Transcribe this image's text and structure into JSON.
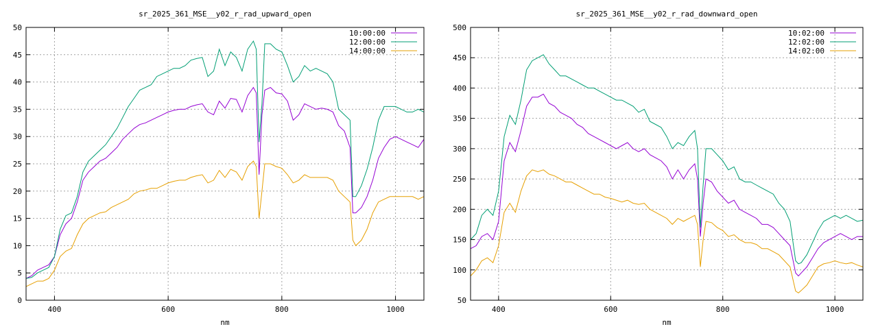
{
  "chart_data": [
    {
      "type": "line",
      "title": "sr_2025_361_MSE__y02_r_rad_upward_open",
      "xlabel": "nm",
      "ylabel": "",
      "xlim": [
        350,
        1050
      ],
      "ylim": [
        0,
        50
      ],
      "xticks": [
        400,
        600,
        800,
        1000
      ],
      "yticks": [
        0,
        5,
        10,
        15,
        20,
        25,
        30,
        35,
        40,
        45,
        50
      ],
      "grid": true,
      "legend": "top-right",
      "series": [
        {
          "name": "10:00:00",
          "color": "#9400d3",
          "x": [
            350,
            360,
            370,
            380,
            390,
            400,
            410,
            420,
            430,
            440,
            450,
            460,
            470,
            480,
            490,
            500,
            510,
            520,
            530,
            540,
            550,
            560,
            570,
            580,
            590,
            600,
            610,
            620,
            630,
            640,
            650,
            660,
            670,
            680,
            690,
            700,
            710,
            720,
            730,
            740,
            750,
            755,
            760,
            765,
            770,
            780,
            790,
            800,
            810,
            820,
            830,
            840,
            850,
            860,
            870,
            880,
            890,
            900,
            910,
            920,
            925,
            930,
            940,
            950,
            960,
            970,
            980,
            990,
            1000,
            1010,
            1020,
            1030,
            1040,
            1050
          ],
          "y": [
            4,
            4.5,
            5.5,
            6,
            6.5,
            8,
            12,
            14,
            15,
            18,
            22,
            23.5,
            24.5,
            25.5,
            26,
            27,
            28,
            29.5,
            30.5,
            31.5,
            32.2,
            32.5,
            33,
            33.5,
            34,
            34.5,
            34.8,
            35,
            35,
            35.5,
            35.8,
            36,
            34.5,
            34,
            36.5,
            35.2,
            37,
            36.8,
            34.5,
            37.5,
            39,
            38,
            23,
            34,
            38.5,
            39,
            38,
            37.8,
            36.5,
            33,
            34,
            36,
            35.5,
            35,
            35.2,
            35,
            34.5,
            32,
            31,
            28,
            16,
            16,
            17,
            19,
            22,
            26,
            28,
            29.5,
            30,
            29.5,
            29,
            28.5,
            28,
            29.5
          ]
        },
        {
          "name": "12:00:00",
          "color": "#009e73",
          "x": [
            350,
            360,
            370,
            380,
            390,
            400,
            410,
            420,
            430,
            440,
            450,
            460,
            470,
            480,
            490,
            500,
            510,
            520,
            530,
            540,
            550,
            560,
            570,
            580,
            590,
            600,
            610,
            620,
            630,
            640,
            650,
            660,
            670,
            680,
            690,
            700,
            710,
            720,
            730,
            740,
            750,
            755,
            760,
            765,
            770,
            780,
            790,
            800,
            810,
            820,
            830,
            840,
            850,
            860,
            870,
            880,
            890,
            900,
            910,
            920,
            925,
            930,
            940,
            950,
            960,
            970,
            980,
            990,
            1000,
            1010,
            1020,
            1030,
            1040,
            1050
          ],
          "y": [
            4,
            4.2,
            5,
            5.5,
            6,
            8,
            13,
            15.5,
            16,
            19,
            23.5,
            25.5,
            26.5,
            27.5,
            28.5,
            30,
            31.5,
            33.5,
            35.5,
            37,
            38.5,
            39,
            39.5,
            41,
            41.5,
            42,
            42.5,
            42.5,
            43,
            44,
            44.3,
            44.5,
            41,
            42,
            46,
            43,
            45.5,
            44.5,
            42,
            46,
            47.5,
            46,
            29,
            36,
            47,
            47,
            46,
            45.5,
            43,
            40,
            41,
            43,
            42,
            42.5,
            42,
            41.5,
            40,
            35,
            34,
            33,
            19,
            19,
            21,
            24,
            28,
            33,
            35.5,
            35.5,
            35.5,
            35,
            34.5,
            34.5,
            35,
            34.5
          ]
        },
        {
          "name": "14:00:00",
          "color": "#e69f00",
          "x": [
            350,
            360,
            370,
            380,
            390,
            400,
            410,
            420,
            430,
            440,
            450,
            460,
            470,
            480,
            490,
            500,
            510,
            520,
            530,
            540,
            550,
            560,
            570,
            580,
            590,
            600,
            610,
            620,
            630,
            640,
            650,
            660,
            670,
            680,
            690,
            700,
            710,
            720,
            730,
            740,
            750,
            755,
            760,
            765,
            770,
            780,
            790,
            800,
            810,
            820,
            830,
            840,
            850,
            860,
            870,
            880,
            890,
            900,
            910,
            920,
            925,
            930,
            940,
            950,
            960,
            970,
            980,
            990,
            1000,
            1010,
            1020,
            1030,
            1040,
            1050
          ],
          "y": [
            2.5,
            3,
            3.5,
            3.5,
            4,
            5.5,
            8,
            9,
            9.5,
            12,
            14,
            15,
            15.5,
            16,
            16.2,
            17,
            17.5,
            18,
            18.5,
            19.5,
            20,
            20.2,
            20.5,
            20.5,
            21,
            21.5,
            21.8,
            22,
            22,
            22.5,
            22.8,
            23,
            21.5,
            22,
            23.8,
            22.5,
            24,
            23.5,
            22,
            24.5,
            25.5,
            24.5,
            15,
            20,
            25,
            25,
            24.5,
            24.2,
            23,
            21.5,
            22,
            23,
            22.5,
            22.5,
            22.5,
            22.5,
            22,
            20,
            19,
            18,
            11,
            10,
            11,
            13,
            16,
            18,
            18.5,
            19,
            19,
            19,
            19,
            19,
            18.5,
            19
          ]
        }
      ]
    },
    {
      "type": "line",
      "title": "sr_2025_361_MSE__y02_r_rad_downward_open",
      "xlabel": "nm",
      "ylabel": "",
      "xlim": [
        350,
        1050
      ],
      "ylim": [
        50,
        500
      ],
      "xticks": [
        400,
        600,
        800,
        1000
      ],
      "yticks": [
        50,
        100,
        150,
        200,
        250,
        300,
        350,
        400,
        450,
        500
      ],
      "grid": true,
      "legend": "top-right",
      "series": [
        {
          "name": "10:02:00",
          "color": "#9400d3",
          "x": [
            350,
            360,
            370,
            380,
            390,
            400,
            410,
            420,
            430,
            440,
            450,
            460,
            470,
            480,
            490,
            500,
            510,
            520,
            530,
            540,
            550,
            560,
            570,
            580,
            590,
            600,
            610,
            620,
            630,
            640,
            650,
            660,
            670,
            680,
            690,
            700,
            710,
            720,
            730,
            740,
            750,
            755,
            760,
            765,
            770,
            780,
            790,
            800,
            810,
            820,
            830,
            840,
            850,
            860,
            870,
            880,
            890,
            900,
            910,
            920,
            930,
            935,
            940,
            950,
            960,
            970,
            980,
            990,
            1000,
            1010,
            1020,
            1030,
            1040,
            1050
          ],
          "y": [
            135,
            140,
            155,
            160,
            150,
            180,
            280,
            310,
            295,
            330,
            370,
            385,
            385,
            390,
            375,
            370,
            360,
            355,
            350,
            340,
            335,
            325,
            320,
            315,
            310,
            305,
            300,
            305,
            310,
            300,
            295,
            300,
            290,
            285,
            280,
            270,
            250,
            265,
            250,
            265,
            275,
            250,
            155,
            210,
            250,
            245,
            230,
            220,
            210,
            215,
            200,
            195,
            190,
            185,
            175,
            175,
            170,
            160,
            150,
            140,
            95,
            90,
            95,
            105,
            120,
            135,
            145,
            150,
            155,
            160,
            155,
            150,
            155,
            155
          ]
        },
        {
          "name": "12:02:00",
          "color": "#009e73",
          "x": [
            350,
            360,
            370,
            380,
            390,
            400,
            410,
            420,
            430,
            440,
            450,
            460,
            470,
            480,
            490,
            500,
            510,
            520,
            530,
            540,
            550,
            560,
            570,
            580,
            590,
            600,
            610,
            620,
            630,
            640,
            650,
            660,
            670,
            680,
            690,
            700,
            710,
            720,
            730,
            740,
            750,
            755,
            760,
            765,
            770,
            780,
            790,
            800,
            810,
            820,
            830,
            840,
            850,
            860,
            870,
            880,
            890,
            900,
            910,
            920,
            930,
            935,
            940,
            950,
            960,
            970,
            980,
            990,
            1000,
            1010,
            1020,
            1030,
            1040,
            1050
          ],
          "y": [
            150,
            160,
            190,
            200,
            190,
            230,
            320,
            355,
            340,
            380,
            430,
            445,
            450,
            455,
            440,
            430,
            420,
            420,
            415,
            410,
            405,
            400,
            400,
            395,
            390,
            385,
            380,
            380,
            375,
            370,
            360,
            365,
            345,
            340,
            335,
            320,
            300,
            310,
            305,
            320,
            330,
            300,
            170,
            240,
            300,
            300,
            290,
            280,
            265,
            270,
            250,
            245,
            245,
            240,
            235,
            230,
            225,
            210,
            200,
            180,
            115,
            110,
            112,
            125,
            145,
            165,
            180,
            185,
            190,
            185,
            190,
            185,
            180,
            182
          ]
        },
        {
          "name": "14:02:00",
          "color": "#e69f00",
          "x": [
            350,
            360,
            370,
            380,
            390,
            400,
            410,
            420,
            430,
            440,
            450,
            460,
            470,
            480,
            490,
            500,
            510,
            520,
            530,
            540,
            550,
            560,
            570,
            580,
            590,
            600,
            610,
            620,
            630,
            640,
            650,
            660,
            670,
            680,
            690,
            700,
            710,
            720,
            730,
            740,
            750,
            755,
            760,
            765,
            770,
            780,
            790,
            800,
            810,
            820,
            830,
            840,
            850,
            860,
            870,
            880,
            890,
            900,
            910,
            920,
            930,
            935,
            940,
            950,
            960,
            970,
            980,
            990,
            1000,
            1010,
            1020,
            1030,
            1040,
            1050
          ],
          "y": [
            90,
            100,
            115,
            120,
            112,
            140,
            195,
            210,
            195,
            230,
            255,
            265,
            262,
            265,
            258,
            255,
            250,
            245,
            245,
            240,
            235,
            230,
            225,
            225,
            220,
            218,
            215,
            212,
            215,
            210,
            208,
            210,
            200,
            195,
            190,
            185,
            175,
            185,
            180,
            185,
            190,
            175,
            105,
            150,
            180,
            178,
            170,
            165,
            155,
            158,
            150,
            145,
            145,
            142,
            135,
            135,
            130,
            125,
            115,
            105,
            65,
            62,
            66,
            75,
            90,
            105,
            110,
            112,
            115,
            112,
            110,
            112,
            108,
            105
          ]
        }
      ]
    }
  ]
}
